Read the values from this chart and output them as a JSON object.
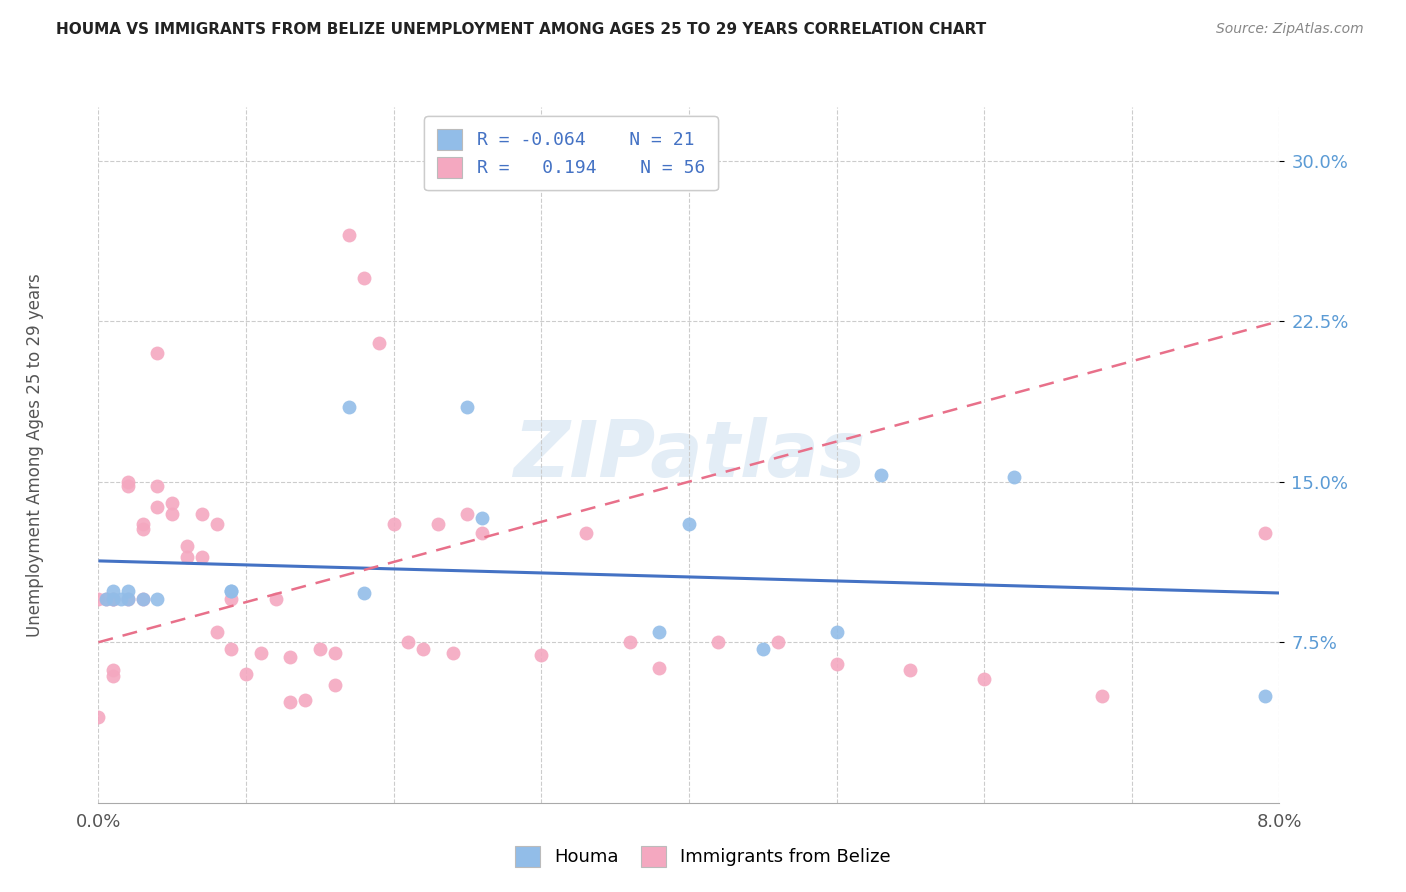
{
  "title": "HOUMA VS IMMIGRANTS FROM BELIZE UNEMPLOYMENT AMONG AGES 25 TO 29 YEARS CORRELATION CHART",
  "source": "Source: ZipAtlas.com",
  "ylabel": "Unemployment Among Ages 25 to 29 years",
  "ytick_vals": [
    0.075,
    0.15,
    0.225,
    0.3
  ],
  "ytick_labels": [
    "7.5%",
    "15.0%",
    "22.5%",
    "30.0%"
  ],
  "xmin": 0.0,
  "xmax": 0.08,
  "ymin": 0.0,
  "ymax": 0.325,
  "houma_R": -0.064,
  "houma_N": 21,
  "belize_R": 0.194,
  "belize_N": 56,
  "houma_color": "#92BDE8",
  "belize_color": "#F4A8C0",
  "houma_line_color": "#4472C4",
  "belize_line_color": "#E8708A",
  "watermark": "ZIPatlas",
  "houma_x": [
    0.0005,
    0.001,
    0.001,
    0.0015,
    0.002,
    0.002,
    0.003,
    0.004,
    0.009,
    0.009,
    0.017,
    0.018,
    0.025,
    0.026,
    0.038,
    0.04,
    0.045,
    0.05,
    0.053,
    0.062,
    0.079
  ],
  "houma_y": [
    0.095,
    0.095,
    0.099,
    0.095,
    0.095,
    0.099,
    0.095,
    0.095,
    0.099,
    0.099,
    0.185,
    0.098,
    0.185,
    0.133,
    0.08,
    0.13,
    0.072,
    0.08,
    0.153,
    0.152,
    0.05
  ],
  "belize_x": [
    0.0,
    0.0,
    0.0005,
    0.001,
    0.001,
    0.001,
    0.001,
    0.002,
    0.002,
    0.002,
    0.003,
    0.003,
    0.003,
    0.004,
    0.004,
    0.004,
    0.005,
    0.005,
    0.006,
    0.006,
    0.007,
    0.007,
    0.008,
    0.008,
    0.009,
    0.009,
    0.01,
    0.011,
    0.012,
    0.013,
    0.013,
    0.014,
    0.015,
    0.016,
    0.016,
    0.017,
    0.018,
    0.019,
    0.02,
    0.021,
    0.022,
    0.023,
    0.024,
    0.025,
    0.026,
    0.03,
    0.033,
    0.036,
    0.038,
    0.042,
    0.046,
    0.05,
    0.055,
    0.06,
    0.068,
    0.079
  ],
  "belize_y": [
    0.095,
    0.04,
    0.095,
    0.095,
    0.095,
    0.062,
    0.059,
    0.15,
    0.148,
    0.095,
    0.13,
    0.128,
    0.095,
    0.21,
    0.148,
    0.138,
    0.14,
    0.135,
    0.12,
    0.115,
    0.135,
    0.115,
    0.13,
    0.08,
    0.095,
    0.072,
    0.06,
    0.07,
    0.095,
    0.068,
    0.047,
    0.048,
    0.072,
    0.07,
    0.055,
    0.265,
    0.245,
    0.215,
    0.13,
    0.075,
    0.072,
    0.13,
    0.07,
    0.135,
    0.126,
    0.069,
    0.126,
    0.075,
    0.063,
    0.075,
    0.075,
    0.065,
    0.062,
    0.058,
    0.05,
    0.126
  ],
  "houma_line_x0": 0.0,
  "houma_line_x1": 0.08,
  "houma_line_y0": 0.113,
  "houma_line_y1": 0.098,
  "belize_line_x0": 0.0,
  "belize_line_x1": 0.08,
  "belize_line_y0": 0.075,
  "belize_line_y1": 0.225
}
